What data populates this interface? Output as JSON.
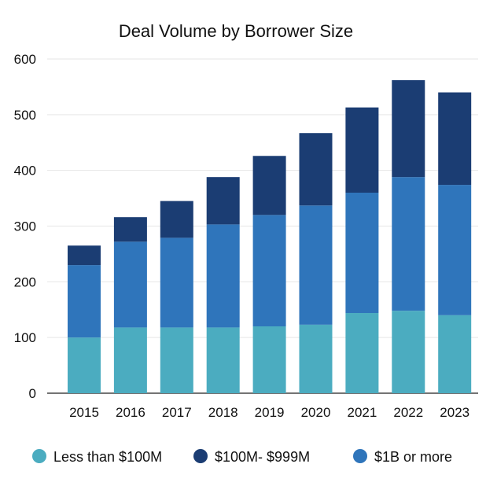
{
  "chart_data": {
    "type": "bar",
    "stacked": true,
    "title": "Deal Volume by Borrower Size",
    "xlabel": "",
    "ylabel": "",
    "ylim": [
      0,
      600
    ],
    "yticks": [
      0,
      100,
      200,
      300,
      400,
      500,
      600
    ],
    "grid": true,
    "legend_position": "bottom",
    "categories": [
      "2015",
      "2016",
      "2017",
      "2018",
      "2019",
      "2020",
      "2021",
      "2022",
      "2023"
    ],
    "series": [
      {
        "name": "Less than $100M",
        "color": "#4bacc0",
        "values": [
          100,
          118,
          118,
          118,
          120,
          123,
          144,
          148,
          140
        ]
      },
      {
        "name": "$1B or more",
        "color": "#2f75bb",
        "values": [
          130,
          154,
          161,
          185,
          200,
          214,
          216,
          240,
          234
        ]
      },
      {
        "name": "$100M- $999M",
        "color": "#1b3d73",
        "values": [
          35,
          44,
          66,
          85,
          106,
          130,
          153,
          174,
          166
        ]
      }
    ],
    "legend_order": [
      "Less than $100M",
      "$100M- $999M",
      "$1B or more"
    ]
  }
}
